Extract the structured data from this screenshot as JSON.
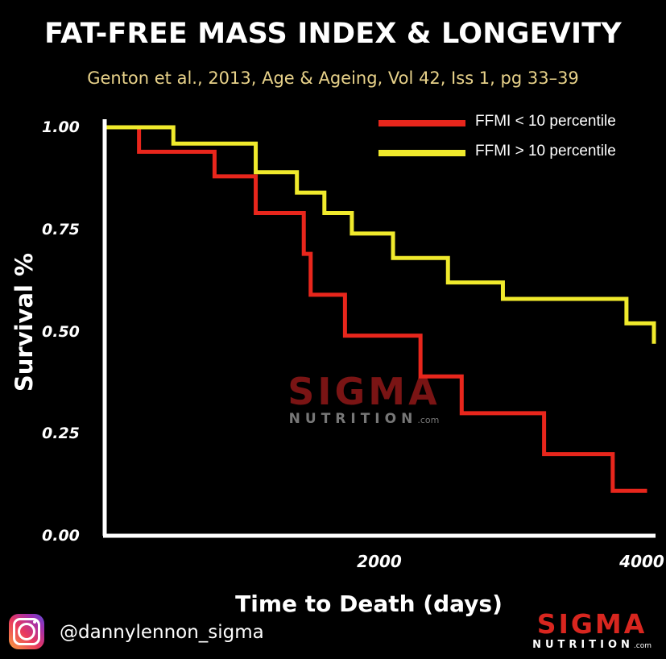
{
  "header": {
    "title": "FAT-FREE MASS INDEX & LONGEVITY",
    "subtitle": "Genton et al., 2013,  Age & Ageing, Vol 42, Iss 1,  pg 33–39"
  },
  "watermark": {
    "brand": "SIGMA",
    "sub": "NUTRITION",
    "suffix": ".com"
  },
  "footer": {
    "icon": "instagram-icon",
    "handle": "@dannylennon_sigma",
    "logo_brand": "SIGMA",
    "logo_sub": "NUTRITION",
    "logo_suffix": ".com"
  },
  "colors": {
    "background": "#000000",
    "red_series": "#e8261c",
    "yellow_series": "#f0ea2c",
    "axis": "#ffffff"
  },
  "chart_data": {
    "type": "line",
    "step": true,
    "title": "FAT-FREE MASS INDEX & LONGEVITY",
    "xlabel": "Time to Death (days)",
    "ylabel": "Survival %",
    "xlim": [
      0,
      4000
    ],
    "ylim": [
      0,
      1.0
    ],
    "x_ticks": [
      2000,
      4000
    ],
    "x_tick_labels": [
      "2000",
      "4000"
    ],
    "y_ticks": [
      1.0,
      0.75,
      0.5,
      0.25,
      0.0
    ],
    "y_tick_labels": [
      "1.00",
      "0.75",
      "0.50",
      "0.25",
      "0.00"
    ],
    "legend_position": "top-right",
    "series": [
      {
        "name": "FFMI < 10 percentile",
        "color": "#e8261c",
        "x": [
          0,
          250,
          800,
          1100,
          1450,
          1500,
          1750,
          2300,
          2600,
          3200,
          3700,
          3950
        ],
        "y": [
          1.0,
          0.94,
          0.88,
          0.79,
          0.69,
          0.59,
          0.49,
          0.39,
          0.3,
          0.2,
          0.11,
          0.11
        ]
      },
      {
        "name": "FFMI > 10 percentile",
        "color": "#f0ea2c",
        "x": [
          0,
          250,
          500,
          1100,
          1400,
          1600,
          1800,
          2100,
          2500,
          2900,
          3800,
          4000
        ],
        "y": [
          1.0,
          1.0,
          0.96,
          0.89,
          0.84,
          0.79,
          0.74,
          0.68,
          0.62,
          0.58,
          0.52,
          0.47
        ]
      }
    ]
  }
}
